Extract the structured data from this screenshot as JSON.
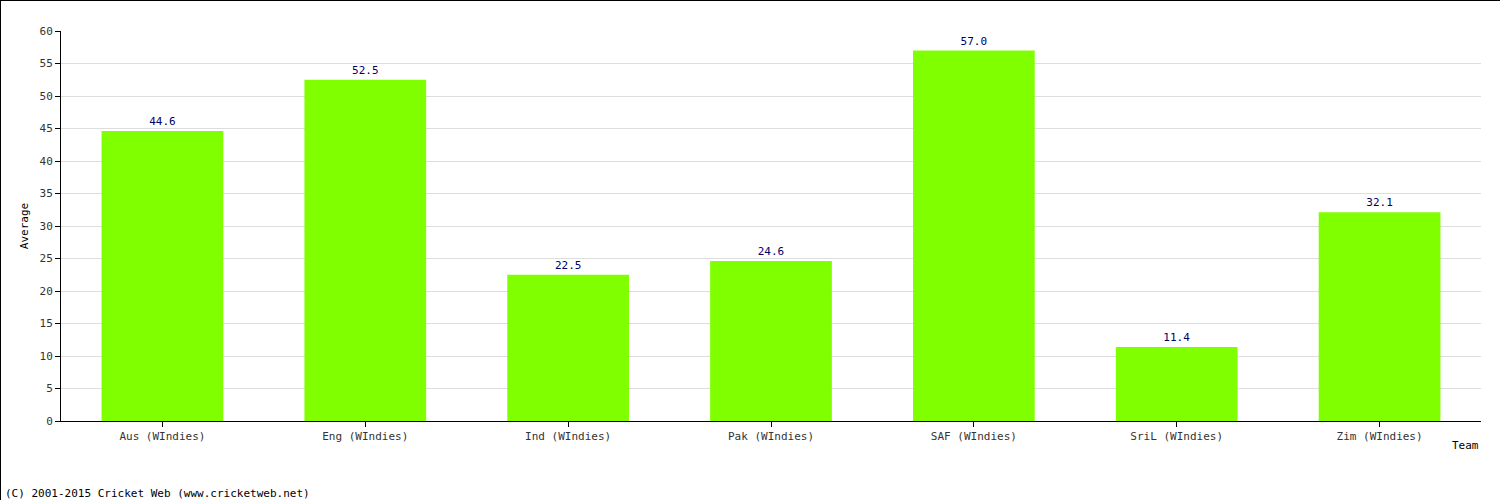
{
  "chart_data": {
    "type": "bar",
    "categories": [
      "Aus (WIndies)",
      "Eng (WIndies)",
      "Ind (WIndies)",
      "Pak (WIndies)",
      "SAF (WIndies)",
      "SriL (WIndies)",
      "Zim (WIndies)"
    ],
    "values": [
      44.6,
      52.5,
      22.5,
      24.6,
      57.0,
      11.4,
      32.1
    ],
    "value_labels": [
      "44.6",
      "52.5",
      "22.5",
      "24.6",
      "57.0",
      "11.4",
      "32.1"
    ],
    "data_labels": true,
    "color": "#80ff00",
    "x_label": "Team",
    "y_label": "Average",
    "ylim": [
      0,
      60
    ],
    "yticks": [
      0,
      5,
      10,
      15,
      20,
      25,
      30,
      35,
      40,
      45,
      50,
      55,
      60
    ],
    "grid": true,
    "annotations": [
      "(C) 2001-2015 Cricket Web (www.cricketweb.net)"
    ]
  }
}
